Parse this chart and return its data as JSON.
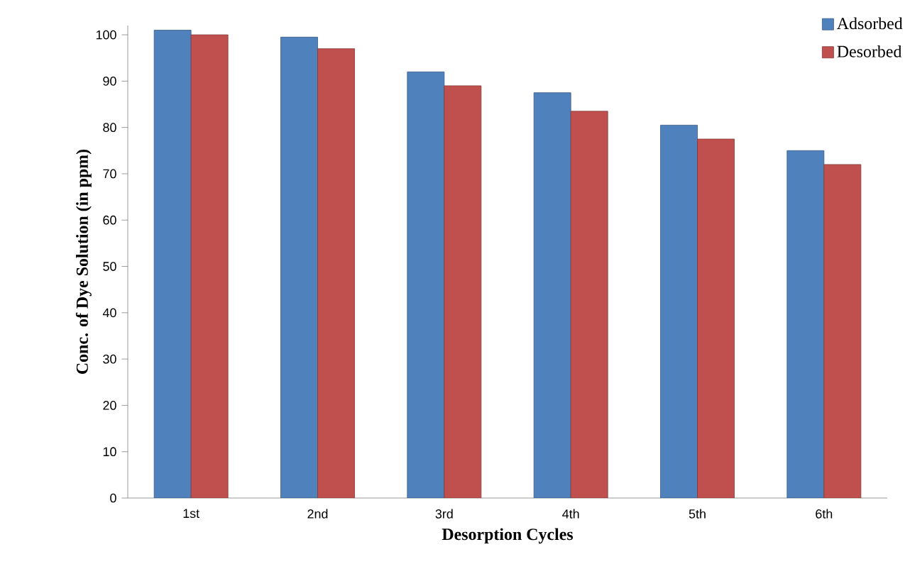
{
  "chart_data": {
    "type": "bar",
    "xlabel": "Desorption Cycles",
    "ylabel": "Conc. of Dye Solution (in ppm)",
    "categories": [
      "1st",
      "2nd",
      "3rd",
      "4th",
      "5th",
      "6th"
    ],
    "series": [
      {
        "name": "Adsorbed",
        "color": "#4f81bd",
        "values": [
          101,
          99.5,
          92,
          87.5,
          80.5,
          75
        ]
      },
      {
        "name": "Desorbed",
        "color": "#c0504d",
        "values": [
          100,
          97,
          89,
          83.5,
          77.5,
          72
        ]
      }
    ],
    "ylim": [
      0,
      102
    ],
    "yticks": [
      0,
      10,
      20,
      30,
      40,
      50,
      60,
      70,
      80,
      90,
      100
    ],
    "legend": "top right"
  }
}
